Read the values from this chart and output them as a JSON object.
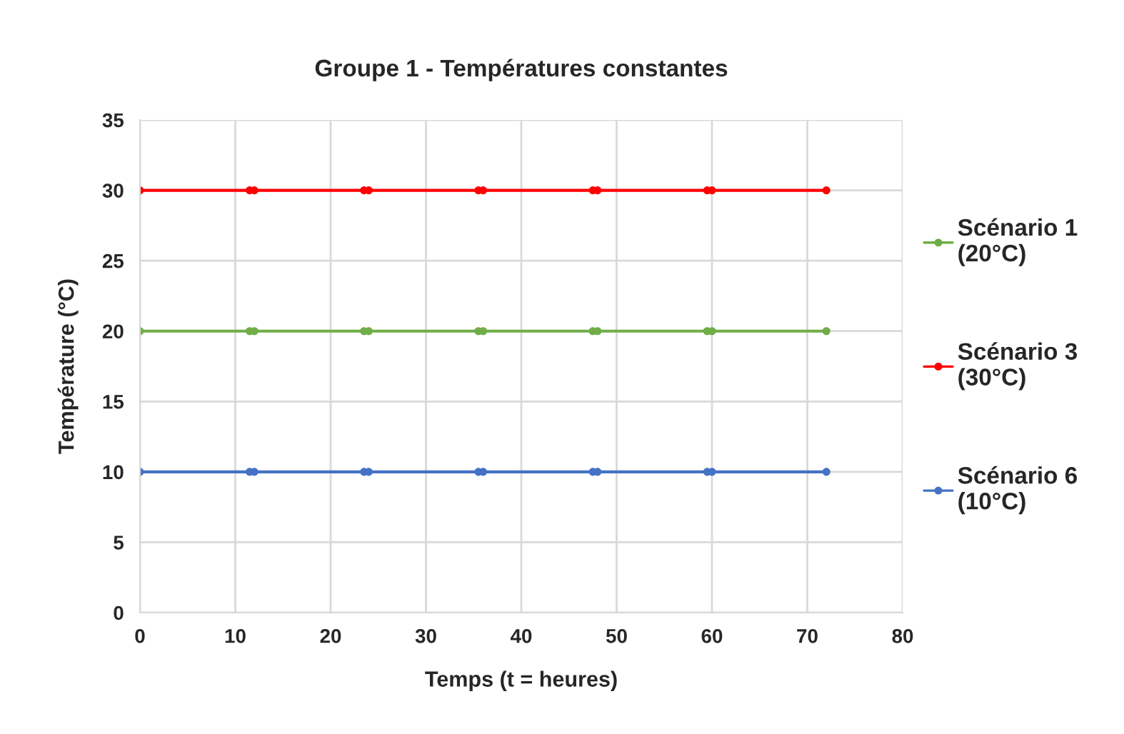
{
  "chart_data": {
    "type": "line",
    "title": "Groupe 1 - Températures constantes",
    "xlabel": "Temps (t = heures)",
    "ylabel": "Température (°C)",
    "x": [
      0,
      11.5,
      12,
      23.5,
      24,
      35.5,
      36,
      47.5,
      48,
      59.5,
      60,
      72
    ],
    "series": [
      {
        "name": "Scénario 1\n(20°C)",
        "color": "#70ad47",
        "values": [
          20,
          20,
          20,
          20,
          20,
          20,
          20,
          20,
          20,
          20,
          20,
          20
        ]
      },
      {
        "name": "Scénario 3\n(30°C)",
        "color": "#ff0000",
        "values": [
          30,
          30,
          30,
          30,
          30,
          30,
          30,
          30,
          30,
          30,
          30,
          30
        ]
      },
      {
        "name": "Scénario 6\n(10°C)",
        "color": "#4472c4",
        "values": [
          10,
          10,
          10,
          10,
          10,
          10,
          10,
          10,
          10,
          10,
          10,
          10
        ]
      }
    ],
    "xlim": [
      0,
      80
    ],
    "xticks": [
      0,
      10,
      20,
      30,
      40,
      50,
      60,
      70,
      80
    ],
    "ylim": [
      0,
      35
    ],
    "yticks": [
      0,
      5,
      10,
      15,
      20,
      25,
      30,
      35
    ],
    "grid": true,
    "legend": "right",
    "marker": "circle",
    "line_style": "solid"
  }
}
